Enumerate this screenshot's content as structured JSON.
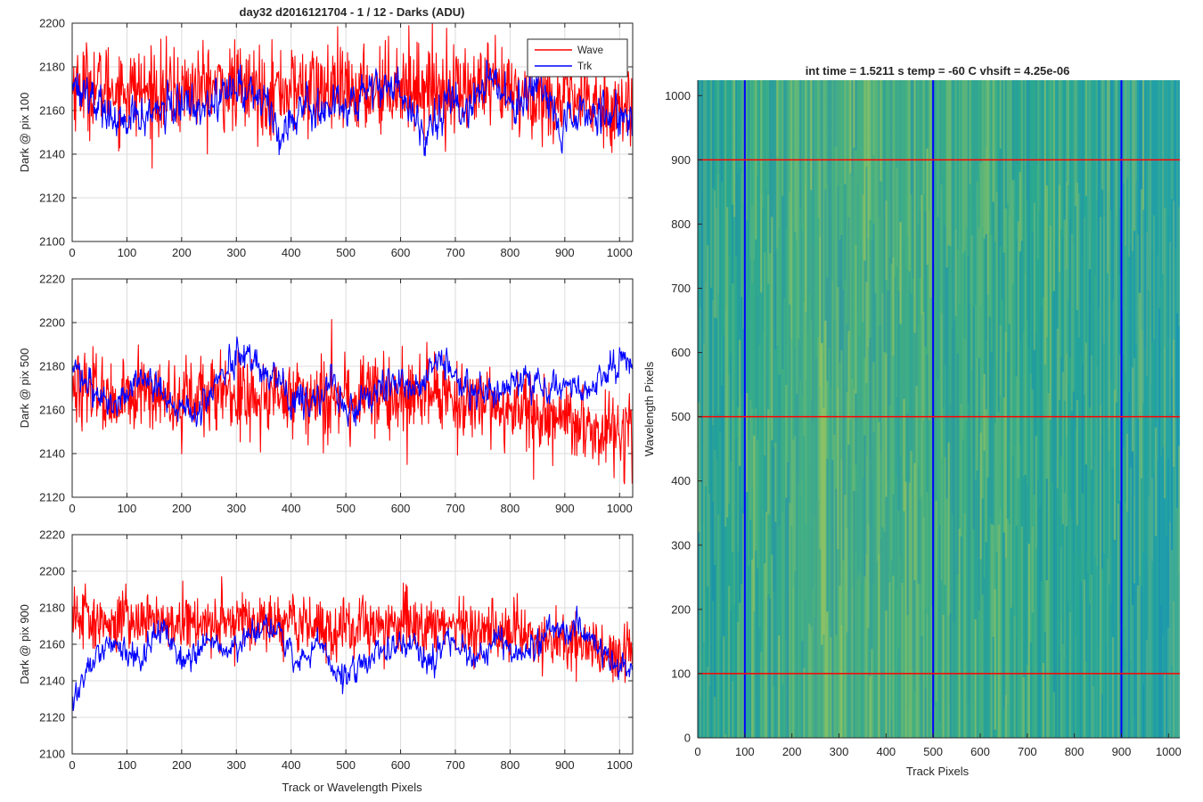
{
  "figure": {
    "left_title": "day32 d2016121704 - 1 / 12 - Darks (ADU)",
    "right_title": "int time = 1.5211 s   temp = -60 C   vhsift = 4.25e-06",
    "left_xlabel": "Track or Wavelength Pixels",
    "right_xlabel": "Track Pixels",
    "right_ylabel": "Wavelength Pixels"
  },
  "colors": {
    "wave": "#ff0000",
    "trk": "#0000ff",
    "grid": "#dcdcdc",
    "axis": "#262626",
    "heatmap_low": "#1f9aa5",
    "heatmap_mid": "#2aa891",
    "heatmap_high": "#a6c85a"
  },
  "chart_data": [
    {
      "type": "line",
      "title": "day32 d2016121704 - 1 / 12 - Darks (ADU)",
      "ylabel": "Dark @ pix 100",
      "xlabel": "",
      "xlim": [
        0,
        1024
      ],
      "ylim": [
        2100,
        2200
      ],
      "xticks": [
        0,
        100,
        200,
        300,
        400,
        500,
        600,
        700,
        800,
        900,
        1000
      ],
      "yticks": [
        2100,
        2120,
        2140,
        2160,
        2180,
        2200
      ],
      "grid": true,
      "legend": {
        "placement": "top-right",
        "entries": [
          "Wave",
          "Trk"
        ]
      },
      "series": [
        {
          "name": "Wave",
          "color": "#ff0000",
          "mean": 2167,
          "noise": 10,
          "values_coarse": [
            2172,
            2170,
            2168,
            2171,
            2169,
            2170,
            2168,
            2172,
            2170,
            2169,
            2166,
            2164,
            2160
          ]
        },
        {
          "name": "Trk",
          "color": "#0000ff",
          "mean": 2162,
          "noise": 5,
          "values_coarse": [
            2175,
            2165,
            2152,
            2158,
            2160,
            2163,
            2165,
            2170,
            2168,
            2150,
            2164,
            2160,
            2165,
            2172,
            2170,
            2150,
            2165,
            2160,
            2176,
            2163,
            2168,
            2150,
            2160,
            2158,
            2160
          ]
        }
      ]
    },
    {
      "type": "line",
      "ylabel": "Dark @ pix 500",
      "xlabel": "",
      "xlim": [
        0,
        1024
      ],
      "ylim": [
        2120,
        2220
      ],
      "xticks": [
        0,
        100,
        200,
        300,
        400,
        500,
        600,
        700,
        800,
        900,
        1000
      ],
      "yticks": [
        2120,
        2140,
        2160,
        2180,
        2200,
        2220
      ],
      "grid": true,
      "series": [
        {
          "name": "Wave",
          "color": "#ff0000",
          "mean": 2166,
          "noise": 9,
          "values_coarse": [
            2168,
            2166,
            2165,
            2167,
            2166,
            2165,
            2166,
            2167,
            2165,
            2163,
            2158,
            2152,
            2148
          ]
        },
        {
          "name": "Trk",
          "color": "#0000ff",
          "mean": 2172,
          "noise": 4,
          "values_coarse": [
            2178,
            2170,
            2162,
            2175,
            2172,
            2160,
            2158,
            2178,
            2182,
            2180,
            2168,
            2162,
            2172,
            2158,
            2170,
            2176,
            2170,
            2182,
            2172,
            2168,
            2170,
            2175,
            2170,
            2172,
            2166,
            2180,
            2185
          ]
        }
      ]
    },
    {
      "type": "line",
      "ylabel": "Dark @ pix 900",
      "xlabel": "Track or Wavelength Pixels",
      "xlim": [
        0,
        1024
      ],
      "ylim": [
        2100,
        2220
      ],
      "xticks": [
        0,
        100,
        200,
        300,
        400,
        500,
        600,
        700,
        800,
        900,
        1000
      ],
      "yticks": [
        2100,
        2120,
        2140,
        2160,
        2180,
        2200,
        2220
      ],
      "grid": true,
      "series": [
        {
          "name": "Wave",
          "color": "#ff0000",
          "mean": 2170,
          "noise": 8,
          "values_coarse": [
            2172,
            2172,
            2171,
            2172,
            2173,
            2172,
            2170,
            2172,
            2170,
            2168,
            2162,
            2158,
            2154
          ]
        },
        {
          "name": "Trk",
          "color": "#0000ff",
          "mean": 2158,
          "noise": 4,
          "values_coarse": [
            2125,
            2155,
            2160,
            2150,
            2168,
            2148,
            2162,
            2155,
            2165,
            2168,
            2150,
            2160,
            2142,
            2150,
            2158,
            2162,
            2148,
            2165,
            2150,
            2162,
            2150,
            2165,
            2170,
            2165,
            2150,
            2145
          ]
        }
      ]
    },
    {
      "type": "heatmap",
      "title": "int time = 1.5211 s   temp = -60 C   vhsift = 4.25e-06",
      "xlabel": "Track Pixels",
      "ylabel": "Wavelength Pixels",
      "xlim": [
        0,
        1024
      ],
      "ylim": [
        0,
        1024
      ],
      "xticks": [
        0,
        100,
        200,
        300,
        400,
        500,
        600,
        700,
        800,
        900,
        1000
      ],
      "yticks": [
        0,
        100,
        200,
        300,
        400,
        500,
        600,
        700,
        800,
        900,
        1000
      ],
      "grid": false,
      "vertical_lines": {
        "color": "#0000ff",
        "x": [
          100,
          500,
          900
        ]
      },
      "horizontal_lines": {
        "color": "#ff0000",
        "y": [
          100,
          500,
          900
        ]
      }
    }
  ]
}
